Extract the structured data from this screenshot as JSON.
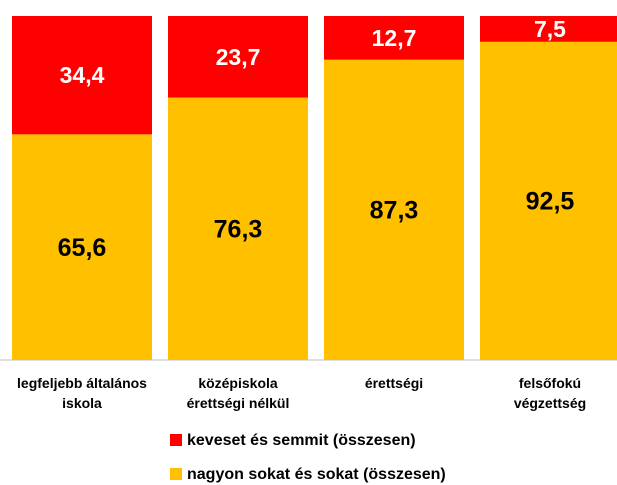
{
  "chart_data": {
    "type": "stacked_bar",
    "categories": [
      [
        "legfeljebb általános",
        "iskola"
      ],
      [
        "középiskola",
        "érettségi nélkül"
      ],
      [
        "érettségi"
      ],
      [
        "felsőfokú",
        "végzettség"
      ]
    ],
    "series": [
      {
        "name": "nagyon sokat és sokat (összesen)",
        "color": "#ffc000",
        "values": [
          65.6,
          76.3,
          87.3,
          92.5
        ],
        "value_labels": [
          "65,6",
          "76,3",
          "87,3",
          "92,5"
        ]
      },
      {
        "name": "keveset és semmit (összesen)",
        "color": "#ff0000",
        "values": [
          34.4,
          23.7,
          12.7,
          7.5
        ],
        "value_labels": [
          "34,4",
          "23,7",
          "12,7",
          "7,5"
        ]
      }
    ],
    "ylim": [
      0,
      100
    ],
    "grid": false,
    "legend": "bottom"
  }
}
